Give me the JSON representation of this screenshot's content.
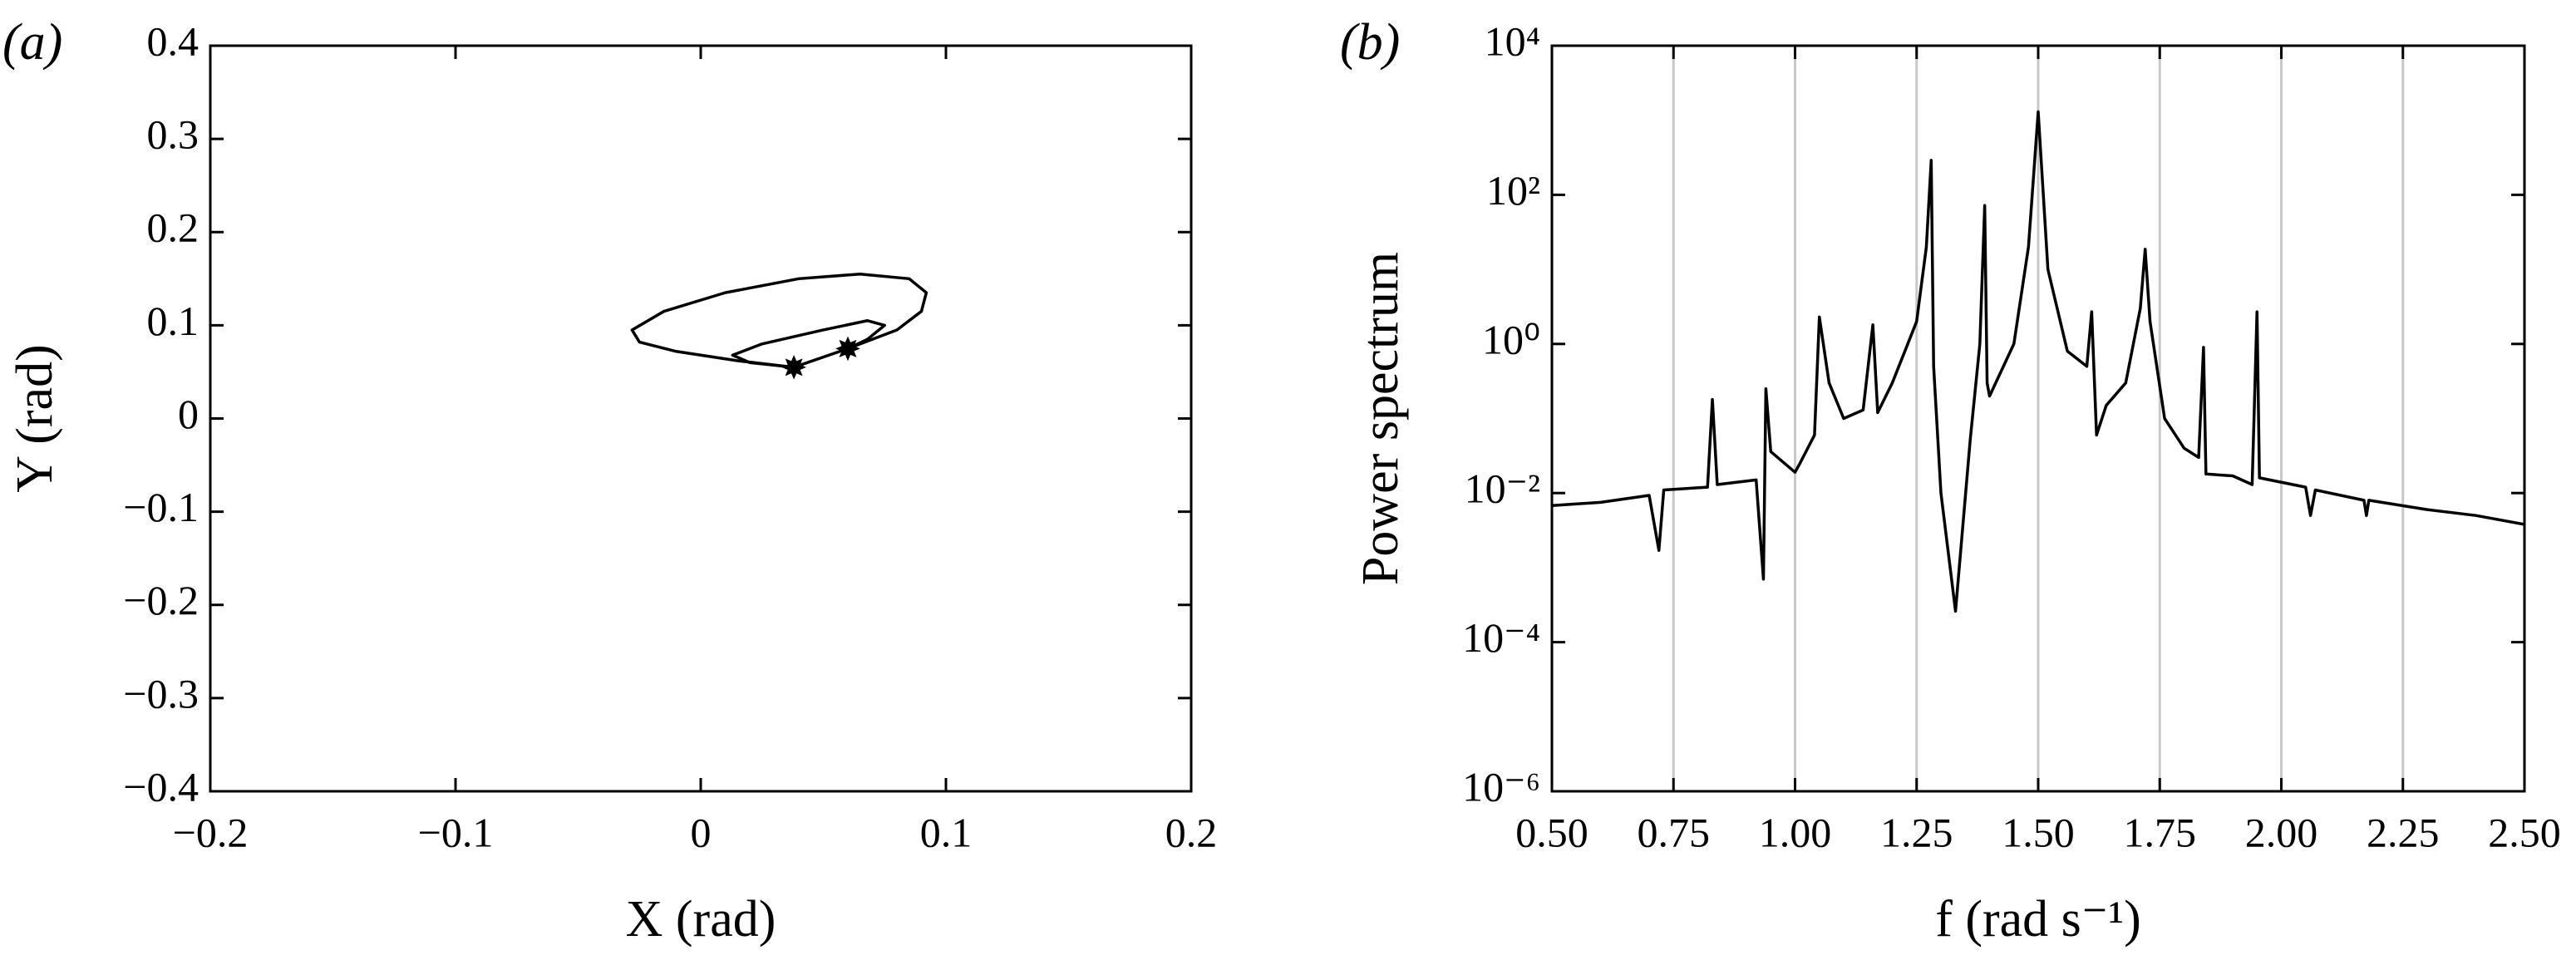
{
  "chart_data": [
    {
      "type": "line",
      "panel_label": "(a)",
      "x_label": "X (rad)",
      "y_label": "Y (rad)",
      "xlim": [
        -0.2,
        0.2
      ],
      "ylim": [
        -0.4,
        0.4
      ],
      "xticks": [
        {
          "value": -0.2,
          "label": "−0.2"
        },
        {
          "value": -0.1,
          "label": "−0.1"
        },
        0,
        0.1,
        0.2
      ],
      "yticks": [
        {
          "value": -0.4,
          "label": "−0.4"
        },
        {
          "value": -0.3,
          "label": "−0.3"
        },
        {
          "value": -0.2,
          "label": "−0.2"
        },
        {
          "value": -0.1,
          "label": "−0.1"
        },
        0,
        0.1,
        0.2,
        0.3,
        0.4
      ],
      "grid": false,
      "series": [
        {
          "color": "#000000",
          "style": "line",
          "x": [
            0.038,
            0.06,
            0.08,
            0.09,
            0.092,
            0.085,
            0.065,
            0.04,
            0.01,
            -0.015,
            -0.028,
            -0.025,
            -0.01,
            0.015,
            0.038,
            0.02,
            0.013,
            0.025,
            0.05,
            0.068,
            0.075,
            0.068,
            0.06
          ],
          "values": [
            0.055,
            0.075,
            0.095,
            0.115,
            0.135,
            0.15,
            0.155,
            0.15,
            0.135,
            0.115,
            0.095,
            0.082,
            0.072,
            0.062,
            0.055,
            0.06,
            0.068,
            0.08,
            0.095,
            0.105,
            0.1,
            0.085,
            0.075
          ]
        },
        {
          "color": "#000000",
          "style": "markers",
          "x": [
            0.038,
            0.06
          ],
          "values": [
            0.055,
            0.075
          ]
        }
      ]
    },
    {
      "type": "line",
      "panel_label": "(b)",
      "x_label": "f (rad s⁻¹)",
      "y_label": "Power spectrum",
      "xlim": [
        0.5,
        2.5
      ],
      "ylim": [
        1e-06,
        10000
      ],
      "log_y": true,
      "xticks": [
        {
          "value": 0.5,
          "label": "0.50"
        },
        0.75,
        {
          "value": 1,
          "label": "1.00"
        },
        1.25,
        {
          "value": 1.5,
          "label": "1.50"
        },
        1.75,
        {
          "value": 2,
          "label": "2.00"
        },
        2.25,
        {
          "value": 2.5,
          "label": "2.50"
        }
      ],
      "yticks": [
        {
          "value": 1e-06,
          "label": "10⁻⁶"
        },
        {
          "value": 0.0001,
          "label": "10⁻⁴"
        },
        {
          "value": 0.01,
          "label": "10⁻²"
        },
        {
          "value": 1,
          "label": "10⁰"
        },
        {
          "value": 100,
          "label": "10²"
        },
        {
          "value": 10000,
          "label": "10⁴"
        }
      ],
      "grid": true,
      "grid_color": "#c8c8c8",
      "color": "#000000",
      "x": [
        0.5,
        0.6,
        0.7,
        0.72,
        0.73,
        0.82,
        0.83,
        0.84,
        0.92,
        0.935,
        0.94,
        0.95,
        1.0,
        1.01,
        1.04,
        1.05,
        1.07,
        1.1,
        1.14,
        1.16,
        1.17,
        1.2,
        1.25,
        1.27,
        1.28,
        1.285,
        1.3,
        1.33,
        1.36,
        1.38,
        1.39,
        1.395,
        1.4,
        1.45,
        1.48,
        1.5,
        1.52,
        1.56,
        1.6,
        1.61,
        1.62,
        1.64,
        1.68,
        1.71,
        1.72,
        1.73,
        1.76,
        1.8,
        1.83,
        1.84,
        1.845,
        1.9,
        1.94,
        1.95,
        1.955,
        2.05,
        2.06,
        2.07,
        2.17,
        2.175,
        2.18,
        2.3,
        2.4,
        2.5
      ],
      "values": [
        0.0068,
        0.0075,
        0.0093,
        0.0017,
        0.011,
        0.012,
        0.18,
        0.013,
        0.015,
        0.0007,
        0.25,
        0.036,
        0.019,
        0.025,
        0.06,
        2.3,
        0.3,
        0.1,
        0.13,
        1.8,
        0.12,
        0.3,
        2,
        20,
        290,
        0.5,
        0.01,
        0.00026,
        0.05,
        1,
        72,
        0.3,
        0.2,
        1,
        20,
        1300,
        10,
        0.8,
        0.5,
        2.7,
        0.06,
        0.15,
        0.3,
        3,
        18.6,
        2,
        0.1,
        0.04,
        0.03,
        0.9,
        0.018,
        0.017,
        0.013,
        2.7,
        0.016,
        0.012,
        0.005,
        0.011,
        0.008,
        0.005,
        0.008,
        0.006,
        0.005,
        0.0038
      ]
    }
  ]
}
